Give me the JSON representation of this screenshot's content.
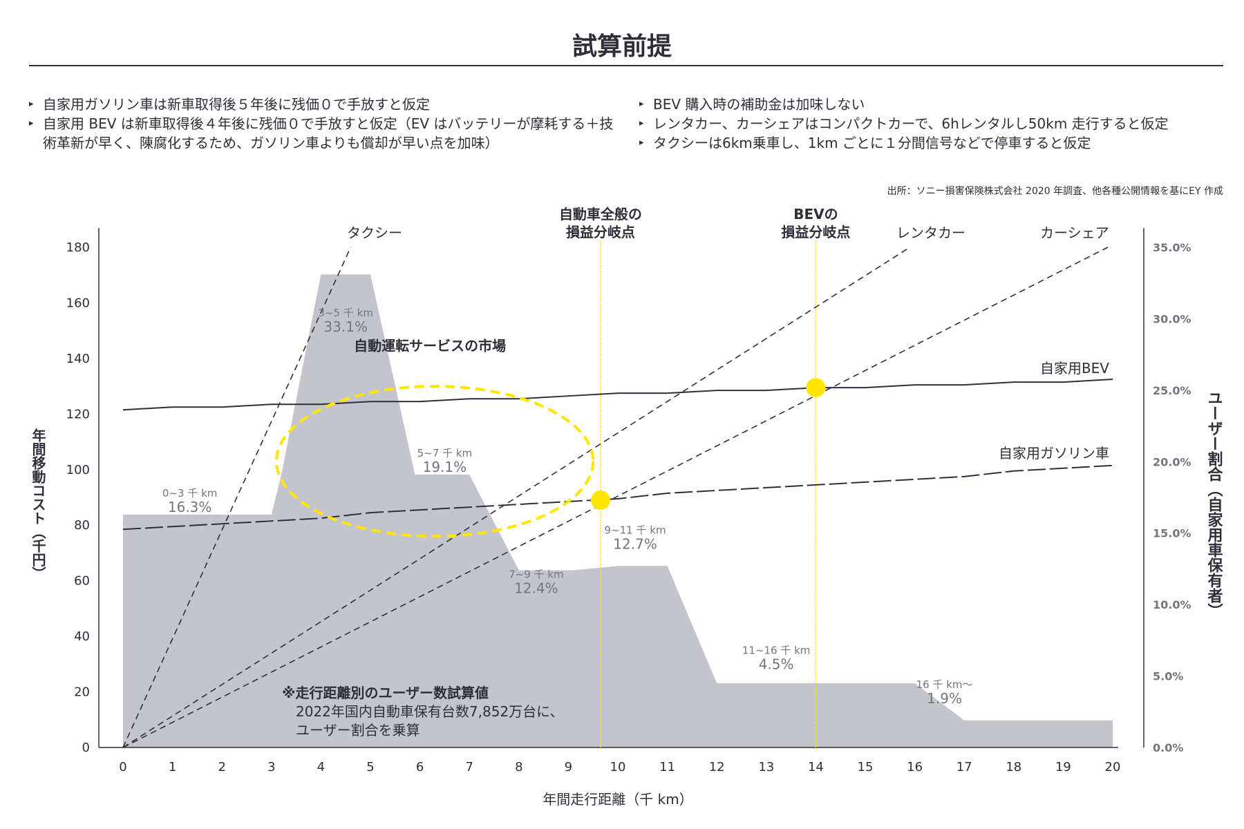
{
  "title": "試算前提",
  "assumptions": {
    "left": [
      "自家用ガソリン車は新車取得後５年後に残価０で手放すと仮定",
      "自家用 BEV は新車取得後４年後に残価０で手放すと仮定（EV はバッテリーが摩耗する＋技術革新が早く、陳腐化するため、ガソリン車よりも償却が早い点を加味）"
    ],
    "right": [
      "BEV 購入時の補助金は加味しない",
      "レンタカー、カーシェアはコンパクトカーで、6hレンタルし50km 走行すると仮定",
      "タクシーは6km乗車し、1km ごとに１分間信号などで停車すると仮定"
    ]
  },
  "source": "出所：ソニー損害保険株式会社 2020 年調査、他各種公開情報を基にEY 作成",
  "colors": {
    "accent": "#ffe600",
    "area": "#c4c4cd",
    "ink": "#2e2e38",
    "right_axis_text": "#747480"
  },
  "chart_data": {
    "type": "line",
    "xlabel": "年間走行距離（千 km）",
    "ylabel": "年間移動コスト（千円）",
    "y2label": "ユーザー割合（自家用車保有者）",
    "xlim": [
      0,
      20
    ],
    "ylim": [
      0,
      180
    ],
    "y2lim": [
      0,
      35
    ],
    "x_ticks": [
      "0",
      "1",
      "2",
      "3",
      "4",
      "5",
      "6",
      "7",
      "8",
      "9",
      "10",
      "11",
      "12",
      "13",
      "14",
      "15",
      "16",
      "17",
      "18",
      "19",
      "20"
    ],
    "y_ticks": [
      "0",
      "20",
      "40",
      "60",
      "80",
      "100",
      "120",
      "140",
      "160",
      "180"
    ],
    "y2_ticks": [
      "0.0%",
      "5.0%",
      "10.0%",
      "15.0%",
      "20.0%",
      "25.0%",
      "30.0%",
      "35.0%"
    ],
    "series": [
      {
        "name": "自家用BEV",
        "style": "solid",
        "x": [
          0,
          1,
          2,
          3,
          4,
          5,
          6,
          7,
          8,
          9,
          10,
          11,
          12,
          13,
          14,
          15,
          16,
          17,
          18,
          19,
          20
        ],
        "values": [
          121.5,
          122.5,
          122.5,
          123.5,
          123.5,
          124.5,
          124.5,
          125.5,
          125.5,
          126.5,
          127.5,
          127.5,
          128.5,
          128.5,
          129.5,
          129.5,
          130.5,
          130.5,
          131.5,
          131.5,
          132.5
        ]
      },
      {
        "name": "自家用ガソリン車",
        "style": "longdash",
        "x": [
          0,
          1,
          2,
          3,
          4,
          5,
          6,
          7,
          8,
          9,
          10,
          11,
          12,
          13,
          14,
          15,
          16,
          17,
          18,
          19,
          20
        ],
        "values": [
          78.5,
          79.5,
          80.5,
          81.5,
          82.5,
          84.5,
          85.5,
          86.5,
          87.5,
          88.5,
          89.5,
          91.5,
          92.5,
          93.5,
          94.5,
          95.5,
          96.5,
          97.5,
          99.5,
          100.5,
          101.5
        ]
      },
      {
        "name": "タクシー",
        "style": "dash",
        "x": [
          0,
          4.6
        ],
        "values": [
          0,
          180
        ]
      },
      {
        "name": "レンタカー",
        "style": "dash",
        "x": [
          0,
          15.9
        ],
        "values": [
          0,
          180
        ]
      },
      {
        "name": "カーシェア",
        "style": "dash",
        "x": [
          0,
          19.9
        ],
        "values": [
          0,
          180
        ]
      }
    ],
    "user_share": {
      "x": [
        0,
        3,
        3.2,
        4,
        5,
        5.9,
        6,
        7,
        8,
        8.1,
        9.1,
        10,
        11,
        12,
        12.1,
        16,
        17,
        20
      ],
      "values": [
        16.3,
        16.3,
        19.1,
        33.1,
        33.1,
        19.1,
        19.1,
        19.1,
        12.4,
        12.4,
        12.4,
        12.7,
        12.7,
        4.5,
        4.5,
        4.5,
        1.9,
        1.9
      ]
    },
    "share_labels": [
      {
        "range": "0~3 千 km",
        "pct": "16.3%",
        "x": 1.35,
        "y": 16.3
      },
      {
        "range": "3~5 千 km",
        "pct": "33.1%",
        "x": 4.5,
        "y": 28.9
      },
      {
        "range": "5~7 千 km",
        "pct": "19.1%",
        "x": 6.5,
        "y": 19.1
      },
      {
        "range": "7~9 千 km",
        "pct": "12.4%",
        "x": 8.35,
        "y": 10.6
      },
      {
        "range": "9~11 千 km",
        "pct": "12.7%",
        "x": 10.35,
        "y": 13.7
      },
      {
        "range": "11~16 千 km",
        "pct": "4.5%",
        "x": 13.2,
        "y": 5.3
      },
      {
        "range": "16 千 km～",
        "pct": "1.9%",
        "x": 16.6,
        "y": 2.9
      }
    ],
    "breakeven": [
      {
        "line1": "自動車全般の",
        "line2": "損益分岐点",
        "x": 9.65,
        "y": 89
      },
      {
        "line1": "BEVの",
        "line2": "損益分岐点",
        "x": 14.0,
        "y": 129.5
      }
    ],
    "market": {
      "label": "自動運転サービスの市場",
      "cx": 6.3,
      "cy": 103,
      "rx": 3.2,
      "ry": 27
    },
    "note": {
      "title": "※走行距離別のユーザー数試算値",
      "lines": [
        "2022年国内自動車保有台数7,852万台に、",
        "ユーザー割合を乗算"
      ]
    }
  }
}
